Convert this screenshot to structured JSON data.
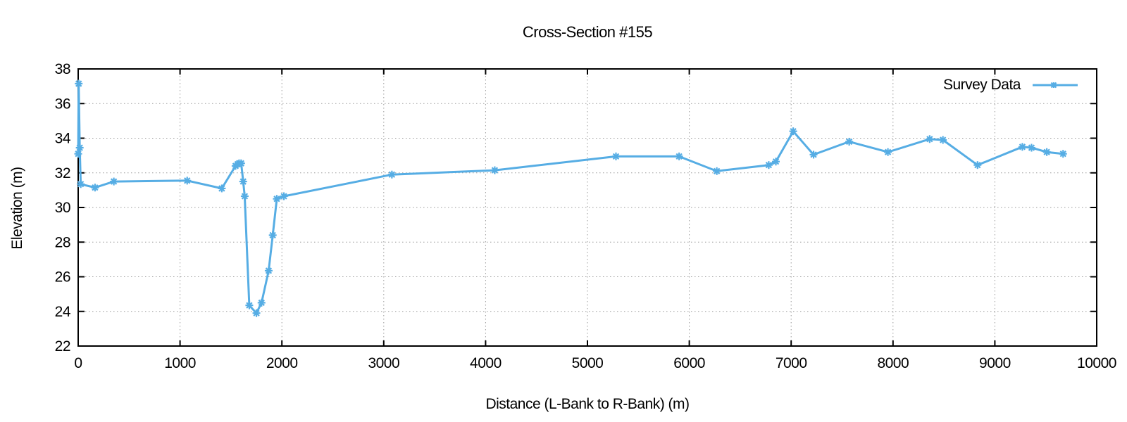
{
  "chart_data": {
    "type": "line",
    "title": "Cross-Section #155",
    "xlabel": "Distance (L-Bank to R-Bank) (m)",
    "ylabel": "Elevation (m)",
    "xlim": [
      0,
      10000
    ],
    "ylim": [
      22,
      38
    ],
    "xticks": [
      0,
      1000,
      2000,
      3000,
      4000,
      5000,
      6000,
      7000,
      8000,
      9000,
      10000
    ],
    "yticks": [
      22,
      24,
      26,
      28,
      30,
      32,
      34,
      36,
      38
    ],
    "grid": true,
    "legend_position": "top-right-inside",
    "series": [
      {
        "name": "Survey Data",
        "marker": "asterisk",
        "color": "#56ade4",
        "points": [
          [
            0,
            33.1
          ],
          [
            5,
            37.15
          ],
          [
            15,
            33.45
          ],
          [
            25,
            31.35
          ],
          [
            165,
            31.15
          ],
          [
            350,
            31.5
          ],
          [
            1070,
            31.55
          ],
          [
            1410,
            31.1
          ],
          [
            1545,
            32.4
          ],
          [
            1565,
            32.5
          ],
          [
            1580,
            32.55
          ],
          [
            1600,
            32.55
          ],
          [
            1620,
            31.5
          ],
          [
            1635,
            30.65
          ],
          [
            1680,
            24.35
          ],
          [
            1750,
            23.9
          ],
          [
            1800,
            24.5
          ],
          [
            1870,
            26.35
          ],
          [
            1910,
            28.4
          ],
          [
            1950,
            30.5
          ],
          [
            2020,
            30.65
          ],
          [
            3080,
            31.9
          ],
          [
            4090,
            32.15
          ],
          [
            5280,
            32.95
          ],
          [
            5900,
            32.95
          ],
          [
            6270,
            32.1
          ],
          [
            6780,
            32.45
          ],
          [
            6850,
            32.65
          ],
          [
            7020,
            34.4
          ],
          [
            7220,
            33.05
          ],
          [
            7570,
            33.8
          ],
          [
            7950,
            33.2
          ],
          [
            8360,
            33.95
          ],
          [
            8490,
            33.9
          ],
          [
            8830,
            32.45
          ],
          [
            9270,
            33.5
          ],
          [
            9360,
            33.45
          ],
          [
            9510,
            33.2
          ],
          [
            9670,
            33.1
          ]
        ]
      }
    ]
  },
  "colors": {
    "line": "#56ade4",
    "grid": "#9a9a9a",
    "border": "#000000",
    "text": "#000000",
    "background": "#ffffff"
  }
}
